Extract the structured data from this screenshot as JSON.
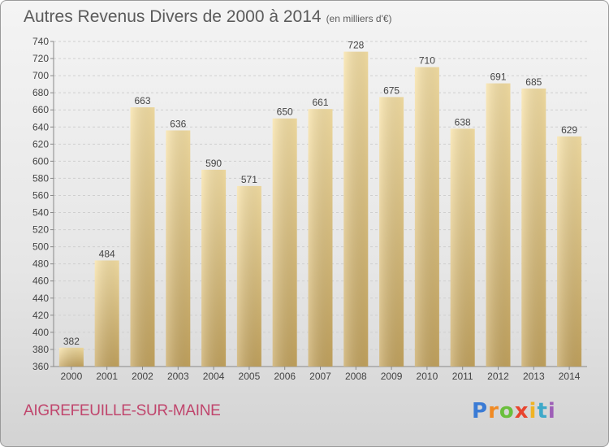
{
  "header": {
    "title": "Autres Revenus Divers de 2000 à 2014",
    "unit": "(en milliers d'€)"
  },
  "footer": {
    "commune": "AIGREFEUILLE-SUR-MAINE",
    "logo": "Proxiti"
  },
  "chart_data": {
    "type": "bar",
    "title": "Autres Revenus Divers de 2000 à 2014",
    "subtitle": "(en milliers d'€)",
    "categories": [
      "2000",
      "2001",
      "2002",
      "2003",
      "2004",
      "2005",
      "2006",
      "2007",
      "2008",
      "2009",
      "2010",
      "2011",
      "2012",
      "2013",
      "2014"
    ],
    "values": [
      382,
      484,
      663,
      636,
      590,
      571,
      650,
      661,
      728,
      675,
      710,
      638,
      691,
      685,
      629
    ],
    "ylim": [
      360,
      740
    ],
    "ytick_step": 20,
    "grid": true,
    "legend": "none",
    "bar_color_top": "#f7dea0",
    "bar_color_bottom": "#c8a75f"
  }
}
